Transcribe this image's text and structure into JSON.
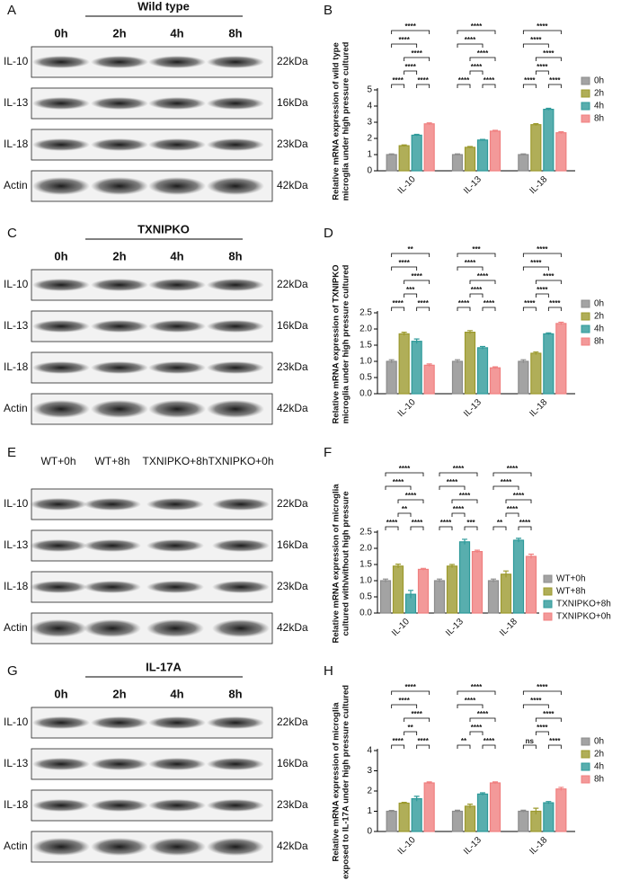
{
  "blots": [
    {
      "panel_label": "A",
      "title": "Wild type",
      "lanes": [
        "0h",
        "2h",
        "4h",
        "8h"
      ],
      "rows": [
        "IL-10",
        "IL-13",
        "IL-18",
        "Actin"
      ],
      "sizes": [
        "22kDa",
        "16kDa",
        "23kDa",
        "42kDa"
      ]
    },
    {
      "panel_label": "C",
      "title": "TXNIPKO",
      "lanes": [
        "0h",
        "2h",
        "4h",
        "8h"
      ],
      "rows": [
        "IL-10",
        "IL-13",
        "IL-18",
        "Actin"
      ],
      "sizes": [
        "22kDa",
        "16kDa",
        "23kDa",
        "42kDa"
      ]
    },
    {
      "panel_label": "E",
      "lanes": [
        "WT+0h",
        "WT+8h",
        "TXNIPKO+8h",
        "TXNIPKO+0h"
      ],
      "rows": [
        "IL-10",
        "IL-13",
        "IL-18",
        "Actin"
      ],
      "sizes": [
        "22kDa",
        "16kDa",
        "23kDa",
        "42kDa"
      ]
    },
    {
      "panel_label": "G",
      "title": "IL-17A",
      "lanes": [
        "0h",
        "2h",
        "4h",
        "8h"
      ],
      "rows": [
        "IL-10",
        "IL-13",
        "IL-18",
        "Actin"
      ],
      "sizes": [
        "22kDa",
        "16kDa",
        "23kDa",
        "42kDa"
      ]
    }
  ],
  "chart_data": [
    {
      "type": "bar",
      "panel_label": "B",
      "y_label": [
        "Relative mRNA expression of wild type",
        "microglia under high pressure cultured"
      ],
      "categories": [
        "IL-10",
        "IL-13",
        "IL-18"
      ],
      "ylim": [
        0,
        5
      ],
      "yticks": [
        0,
        1,
        2,
        3,
        4,
        5
      ],
      "legend": "right",
      "series": [
        {
          "name": "0h",
          "color": "#8c8c8c",
          "values": [
            1,
            1,
            1
          ],
          "errors": [
            0.04,
            0.04,
            0.04
          ]
        },
        {
          "name": "2h",
          "color": "#9c9a2e",
          "values": [
            1.55,
            1.45,
            2.85
          ],
          "errors": [
            0.05,
            0.05,
            0.06
          ]
        },
        {
          "name": "4h",
          "color": "#2e9a9a",
          "values": [
            2.2,
            1.9,
            3.8
          ],
          "errors": [
            0.05,
            0.04,
            0.06
          ]
        },
        {
          "name": "8h",
          "color": "#f08080",
          "values": [
            2.9,
            2.45,
            2.35
          ],
          "errors": [
            0.06,
            0.05,
            0.06
          ]
        }
      ],
      "significance": [
        [
          "****",
          "****",
          "****",
          "****",
          "****",
          "****"
        ],
        [
          "****",
          "****",
          "****",
          "****",
          "****",
          "****"
        ],
        [
          "****",
          "****",
          "****",
          "****",
          "****",
          "****"
        ]
      ]
    },
    {
      "type": "bar",
      "panel_label": "D",
      "y_label": [
        "Relative mRNA expression of TXNIPKO",
        "microglia under high pressure cultured"
      ],
      "categories": [
        "IL-10",
        "IL-13",
        "IL-18"
      ],
      "ylim": [
        0,
        2.5
      ],
      "yticks": [
        {
          "value": 0,
          "label": "0.0"
        },
        0.5,
        {
          "value": 1,
          "label": "1.0"
        },
        1.5,
        {
          "value": 2,
          "label": "2.0"
        },
        2.5
      ],
      "legend": "right",
      "series": [
        {
          "name": "0h",
          "color": "#8c8c8c",
          "values": [
            1,
            1,
            1
          ],
          "errors": [
            0.05,
            0.05,
            0.05
          ]
        },
        {
          "name": "2h",
          "color": "#9c9a2e",
          "values": [
            1.85,
            1.9,
            1.25
          ],
          "errors": [
            0.05,
            0.05,
            0.04
          ]
        },
        {
          "name": "4h",
          "color": "#2e9a9a",
          "values": [
            1.62,
            1.42,
            1.85
          ],
          "errors": [
            0.07,
            0.04,
            0.03
          ]
        },
        {
          "name": "8h",
          "color": "#f08080",
          "values": [
            0.88,
            0.8,
            2.17
          ],
          "errors": [
            0.04,
            0.03,
            0.04
          ]
        }
      ],
      "significance": [
        [
          "**",
          "****",
          "****",
          "***",
          "****",
          "****"
        ],
        [
          "***",
          "****",
          "****",
          "****",
          "****",
          "****"
        ],
        [
          "****",
          "****",
          "****",
          "****",
          "****",
          "****"
        ]
      ]
    },
    {
      "type": "bar",
      "panel_label": "F",
      "y_label": [
        "Relative mRNA expression of microglia",
        "cultured with/without high pressure"
      ],
      "categories": [
        "IL-10",
        "IL-13",
        "IL-18"
      ],
      "ylim": [
        0,
        2.5
      ],
      "yticks": [
        {
          "value": 0,
          "label": "0.0"
        },
        0.5,
        {
          "value": 1,
          "label": "1.0"
        },
        1.5,
        {
          "value": 2,
          "label": "2.0"
        },
        2.5
      ],
      "legend": "bottom-right",
      "series": [
        {
          "name": "WT+0h",
          "color": "#8c8c8c",
          "values": [
            1,
            1,
            1
          ],
          "errors": [
            0.05,
            0.05,
            0.05
          ]
        },
        {
          "name": "WT+8h",
          "color": "#9c9a2e",
          "values": [
            1.45,
            1.45,
            1.2
          ],
          "errors": [
            0.06,
            0.05,
            0.1
          ]
        },
        {
          "name": "TXNIPKO+8h",
          "color": "#2e9a9a",
          "values": [
            0.58,
            2.2,
            2.25
          ],
          "errors": [
            0.12,
            0.08,
            0.06
          ]
        },
        {
          "name": "TXNIPKO+0h",
          "color": "#f08080",
          "values": [
            1.35,
            1.9,
            1.75
          ],
          "errors": [
            0.03,
            0.04,
            0.07
          ]
        }
      ],
      "significance": [
        [
          "****",
          "****",
          "****",
          "**",
          "****",
          "****"
        ],
        [
          "****",
          "****",
          "****",
          "****",
          "****",
          "***"
        ],
        [
          "****",
          "****",
          "****",
          "****",
          "**",
          "****"
        ]
      ]
    },
    {
      "type": "bar",
      "panel_label": "H",
      "y_label": [
        "Relative mRNA expression of microglia",
        "exposed to IL-17A under high pressure cultured"
      ],
      "categories": [
        "IL-10",
        "IL-13",
        "IL-18"
      ],
      "ylim": [
        0,
        4
      ],
      "yticks": [
        0,
        1,
        2,
        3,
        4
      ],
      "legend": "right",
      "series": [
        {
          "name": "0h",
          "color": "#8c8c8c",
          "values": [
            1,
            1,
            1
          ],
          "errors": [
            0.04,
            0.05,
            0.05
          ]
        },
        {
          "name": "2h",
          "color": "#9c9a2e",
          "values": [
            1.4,
            1.25,
            1.0
          ],
          "errors": [
            0.04,
            0.1,
            0.15
          ]
        },
        {
          "name": "4h",
          "color": "#2e9a9a",
          "values": [
            1.62,
            1.85,
            1.42
          ],
          "errors": [
            0.12,
            0.06,
            0.06
          ]
        },
        {
          "name": "8h",
          "color": "#f08080",
          "values": [
            2.4,
            2.4,
            2.1
          ],
          "errors": [
            0.05,
            0.05,
            0.08
          ]
        }
      ],
      "significance": [
        [
          "****",
          "****",
          "****",
          "**",
          "****",
          "****"
        ],
        [
          "****",
          "****",
          "****",
          "****",
          "**",
          "****"
        ],
        [
          "****",
          "****",
          "****",
          "****",
          "ns",
          "****"
        ]
      ]
    }
  ]
}
